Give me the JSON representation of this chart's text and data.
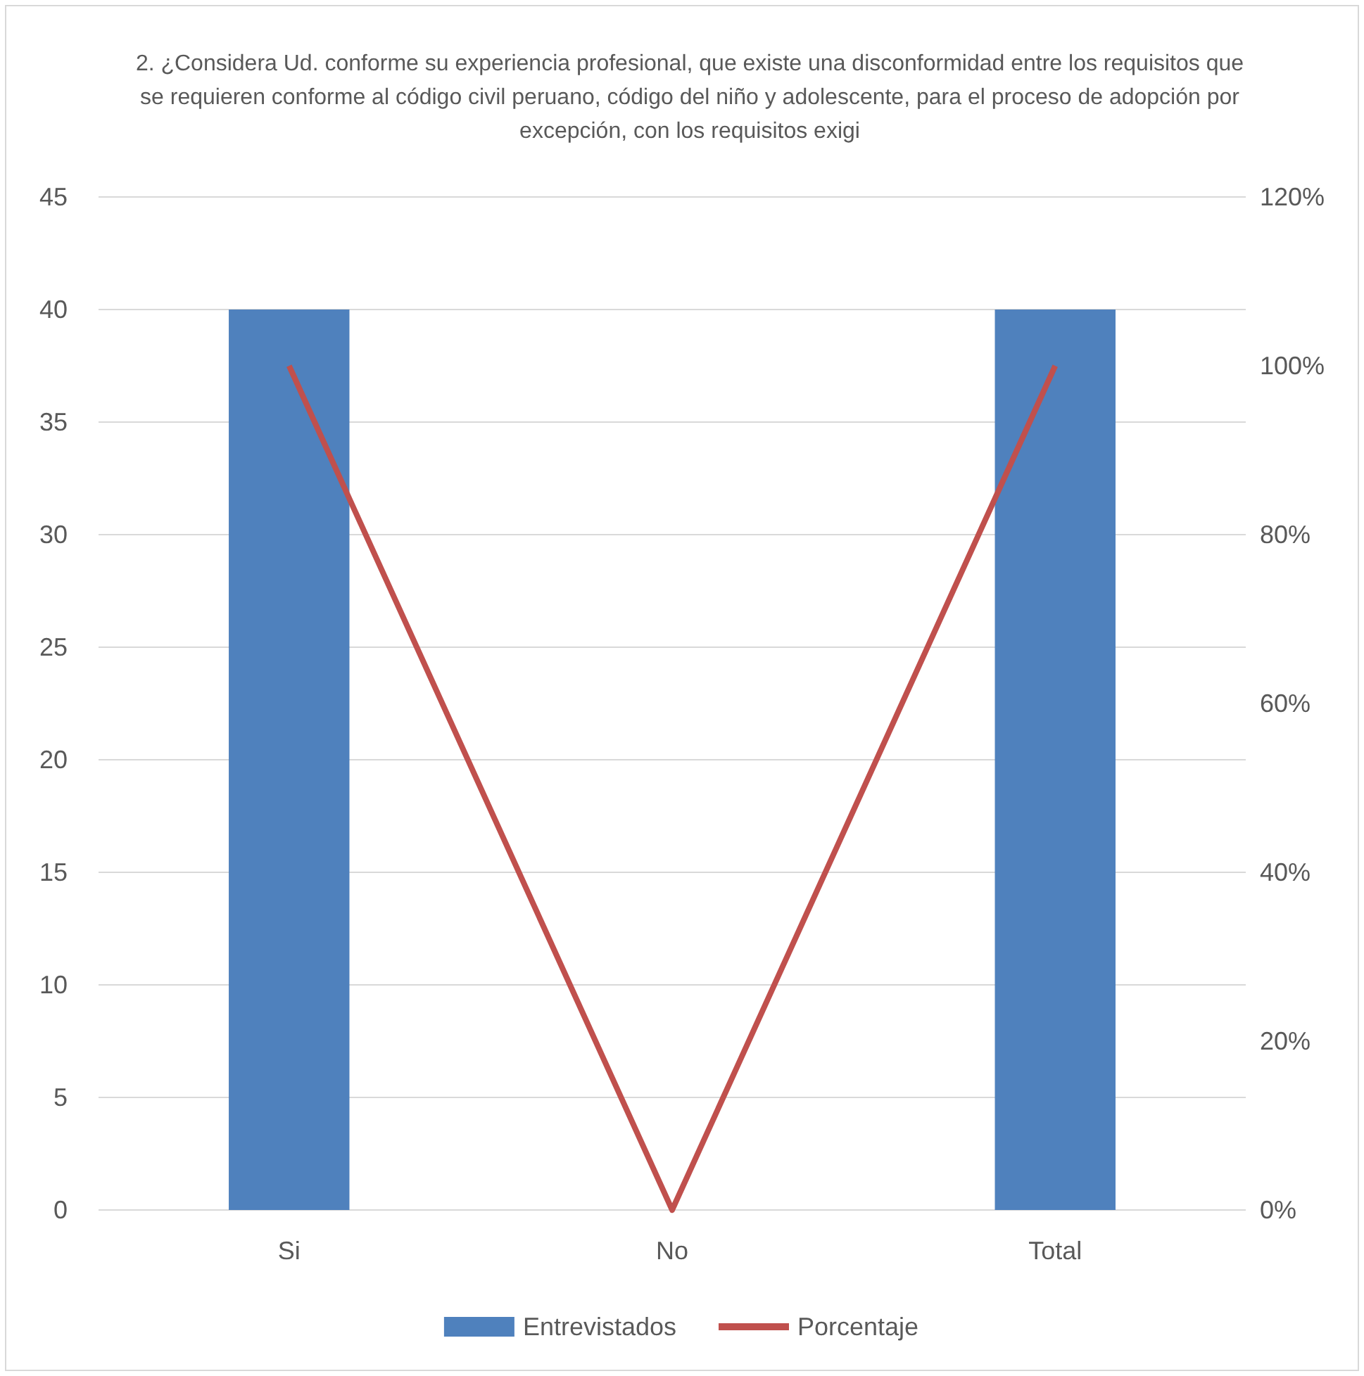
{
  "chart_data": {
    "type": "bar",
    "title": "2. ¿Considera Ud. conforme su experiencia profesional, que existe una disconformidad entre los requisitos que se requieren conforme al código civil peruano, código del niño y adolescente, para el proceso de adopción por excepción, con los requisitos exigi",
    "categories": [
      "Si",
      "No",
      "Total"
    ],
    "series": [
      {
        "name": "Entrevistados",
        "color": "#4f81bd",
        "values": [
          40,
          0,
          40
        ]
      },
      {
        "name": "Porcentaje",
        "type": "line",
        "axis": "y2",
        "color": "#c0504d",
        "values": [
          100,
          0,
          100
        ]
      }
    ],
    "ylim": [
      0,
      45
    ],
    "yticks": [
      0,
      5,
      10,
      15,
      20,
      25,
      30,
      35,
      40,
      45
    ],
    "y2lim": [
      0,
      120
    ],
    "y2ticks": [
      {
        "value": 0,
        "label": "0%"
      },
      {
        "value": 20,
        "label": "20%"
      },
      {
        "value": 40,
        "label": "40%"
      },
      {
        "value": 60,
        "label": "60%"
      },
      {
        "value": 80,
        "label": "80%"
      },
      {
        "value": 100,
        "label": "100%"
      },
      {
        "value": 120,
        "label": "120%"
      }
    ],
    "grid": "y",
    "legend": "bottom",
    "marker": "none",
    "line_style": "solid"
  }
}
